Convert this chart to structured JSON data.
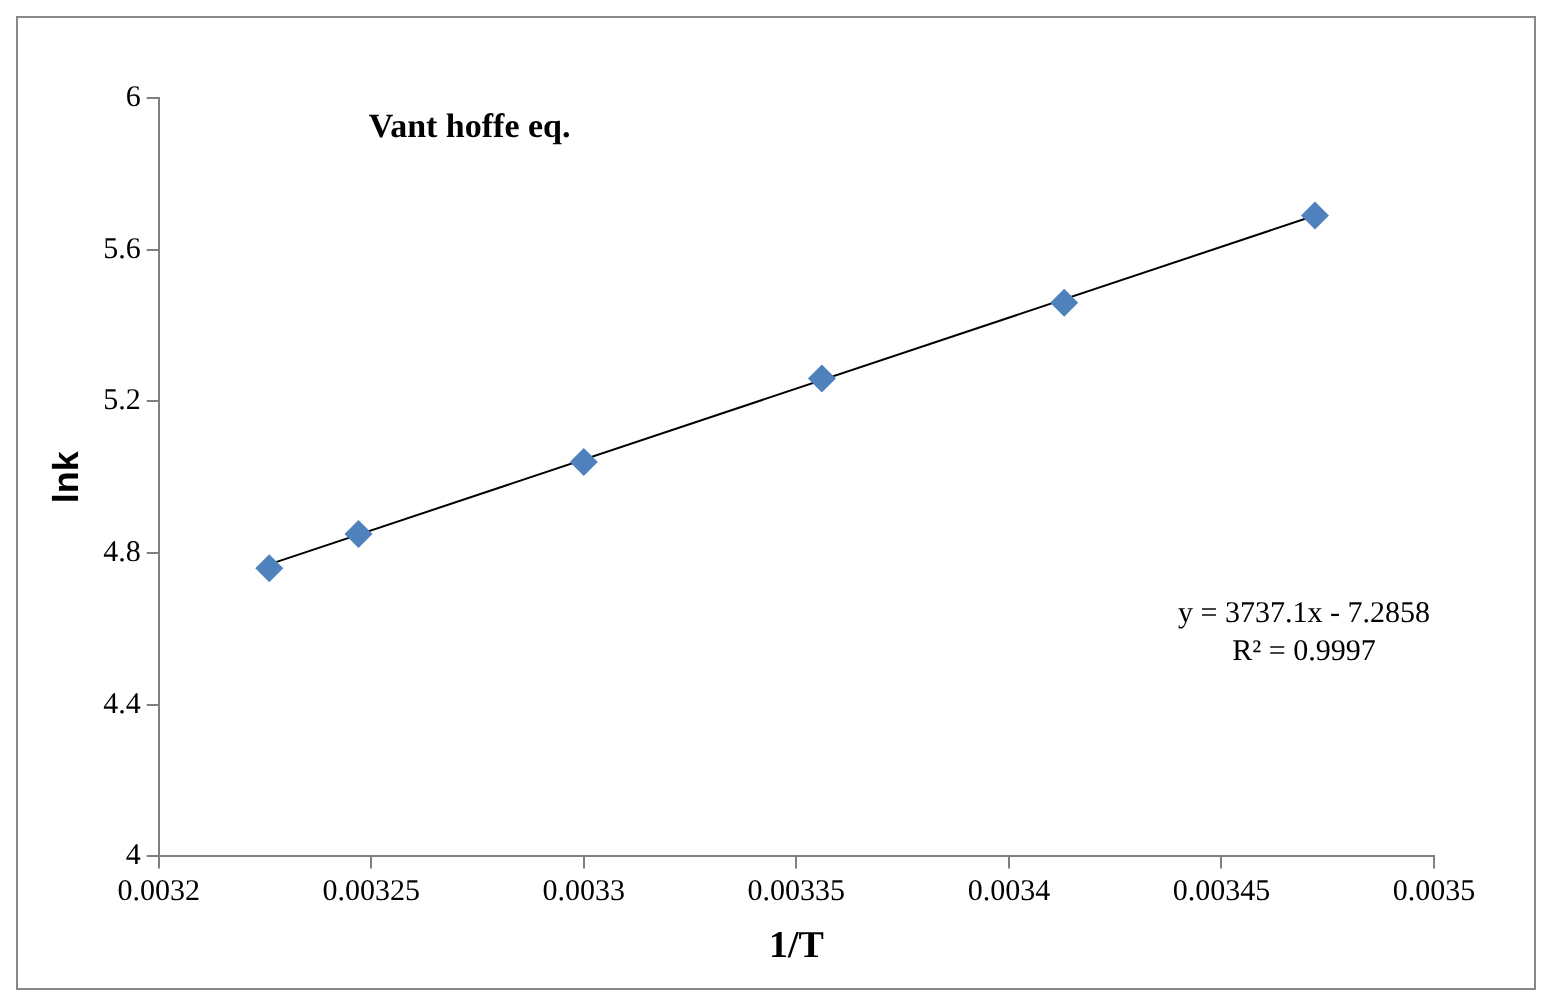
{
  "chart_data": {
    "type": "scatter",
    "title": "Vant hoffe eq.",
    "xlabel": "1/T",
    "ylabel": "lnk",
    "xlim": [
      0.0032,
      0.0035
    ],
    "xticks": [
      0.0032,
      0.00325,
      0.0033,
      0.00335,
      0.0034,
      0.00345,
      0.0035
    ],
    "ylim": [
      4,
      6
    ],
    "yticks": [
      4,
      4.4,
      4.8,
      5.2,
      5.6,
      6
    ],
    "grid": false,
    "legend": false,
    "marker": "diamond",
    "series": [
      {
        "type": "scatter",
        "color": "#4f81bd",
        "x": [
          0.003226,
          0.003247,
          0.0033,
          0.003356,
          0.003413,
          0.003472
        ],
        "values": [
          4.76,
          4.85,
          5.04,
          5.26,
          5.46,
          5.69
        ]
      },
      {
        "type": "line",
        "color": "#000000",
        "marker": "none",
        "x": [
          0.003226,
          0.003472
        ],
        "values": [
          4.77,
          5.69
        ]
      }
    ],
    "annotations": [
      "y = 3737.1x - 7.2858",
      "R² = 0.9997"
    ]
  }
}
